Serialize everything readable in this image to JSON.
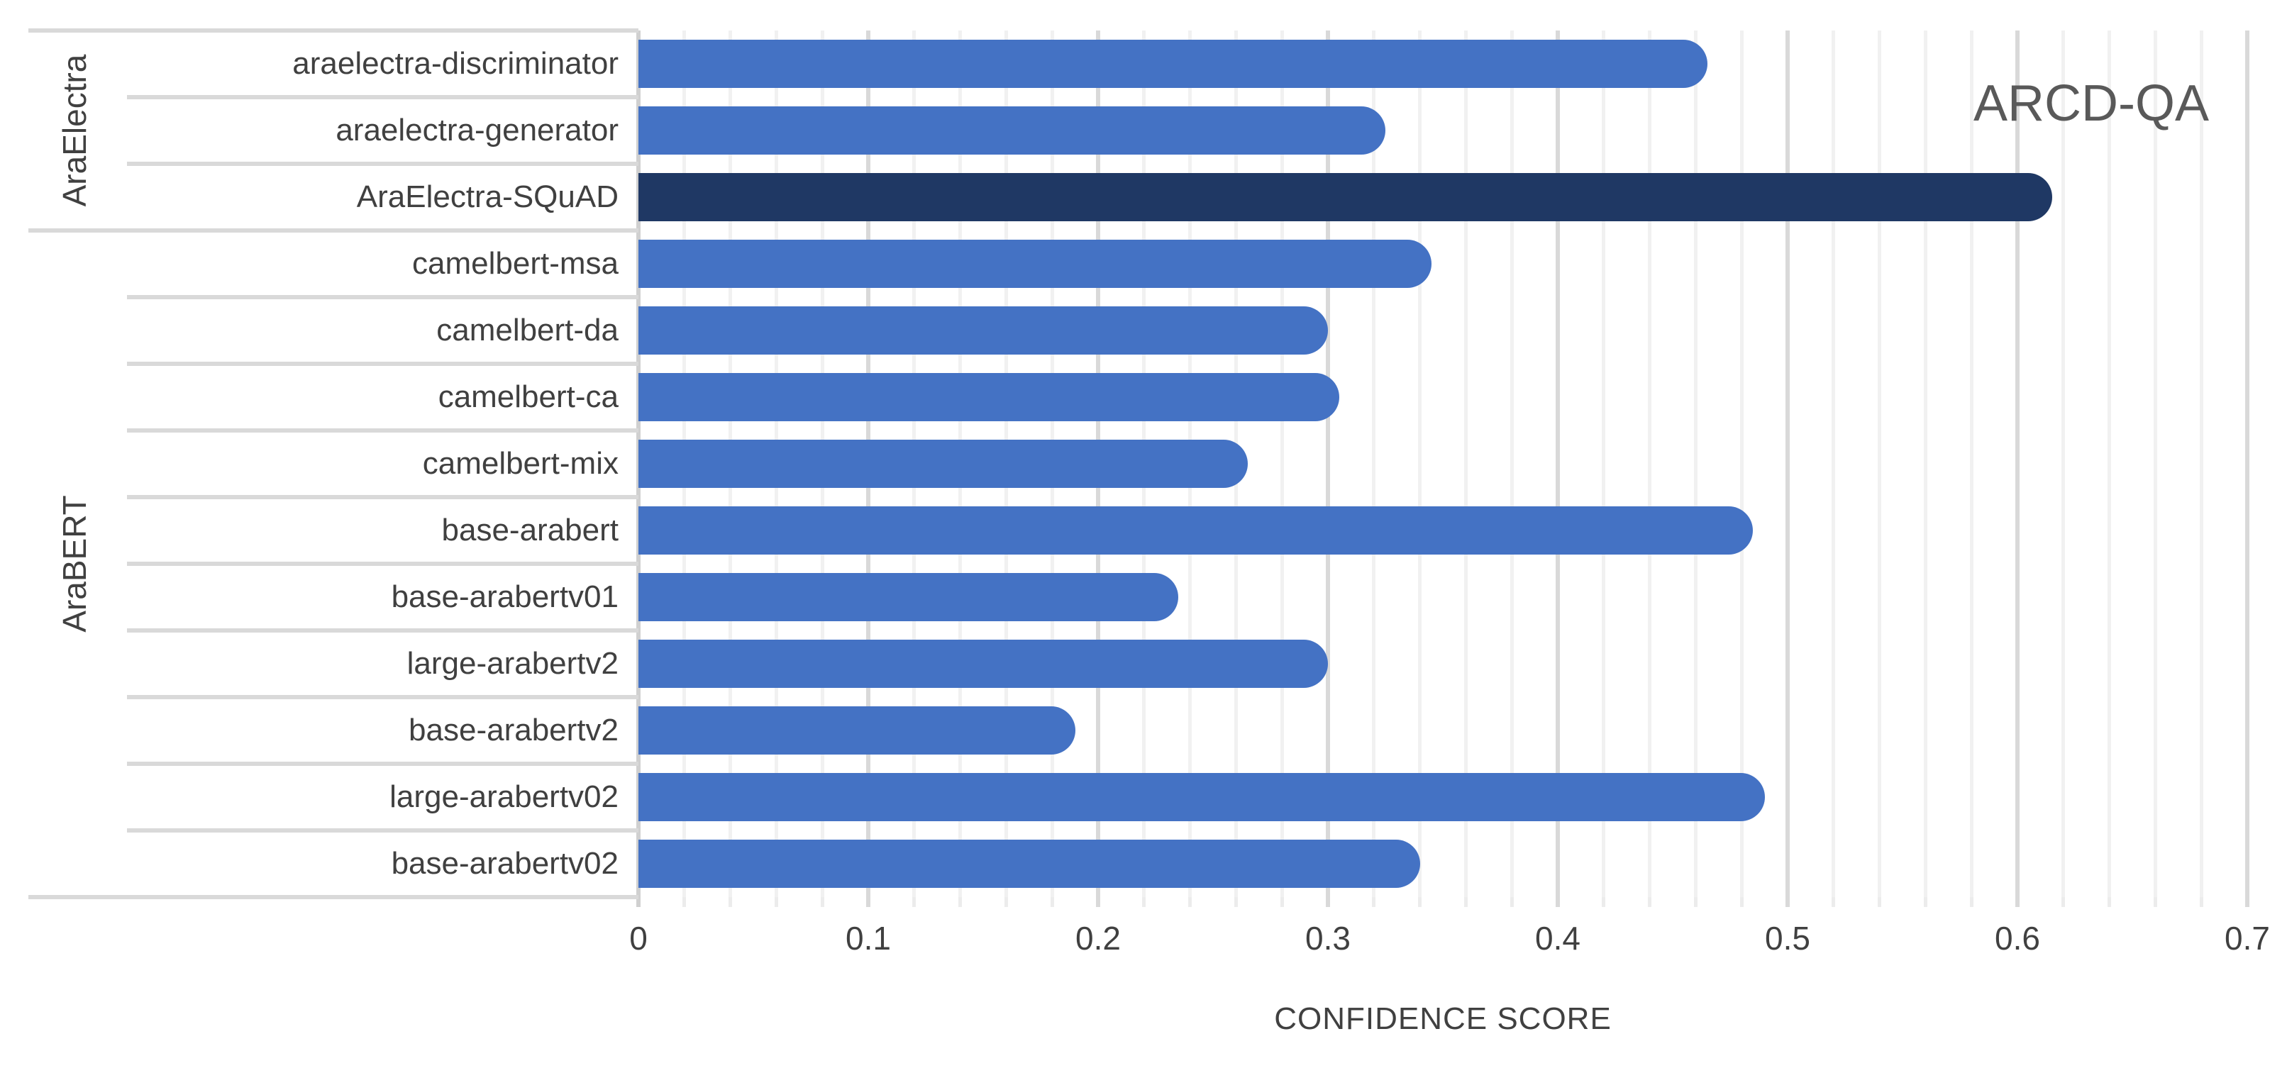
{
  "chart_data": {
    "type": "bar",
    "orientation": "horizontal",
    "title": "ARCD-QA",
    "xlabel": "CONFIDENCE SCORE",
    "xlim": [
      0,
      0.7
    ],
    "x_major_tick": 0.1,
    "x_minor_tick": 0.02,
    "grid": "vertical, minor and major gridlines",
    "legend_position": "none",
    "tick_labels": [
      "0",
      "0.1",
      "0.2",
      "0.3",
      "0.4",
      "0.5",
      "0.6",
      "0.7"
    ],
    "groups": [
      {
        "label": "AraElectra",
        "start_row": 0,
        "end_row": 3
      },
      {
        "label": "AraBERT",
        "start_row": 3,
        "end_row": 13
      }
    ],
    "bars": [
      {
        "group": "AraElectra",
        "label": "araelectra-discriminator",
        "value": 0.465,
        "highlight": false
      },
      {
        "group": "AraElectra",
        "label": "araelectra-generator",
        "value": 0.325,
        "highlight": false
      },
      {
        "group": "AraElectra",
        "label": "AraElectra-SQuAD",
        "value": 0.615,
        "highlight": true
      },
      {
        "group": "AraBERT",
        "label": "camelbert-msa",
        "value": 0.345,
        "highlight": false
      },
      {
        "group": "AraBERT",
        "label": "camelbert-da",
        "value": 0.3,
        "highlight": false
      },
      {
        "group": "AraBERT",
        "label": "camelbert-ca",
        "value": 0.305,
        "highlight": false
      },
      {
        "group": "AraBERT",
        "label": "camelbert-mix",
        "value": 0.265,
        "highlight": false
      },
      {
        "group": "AraBERT",
        "label": "base-arabert",
        "value": 0.485,
        "highlight": false
      },
      {
        "group": "AraBERT",
        "label": "base-arabertv01",
        "value": 0.235,
        "highlight": false
      },
      {
        "group": "AraBERT",
        "label": "large-arabertv2",
        "value": 0.3,
        "highlight": false
      },
      {
        "group": "AraBERT",
        "label": "base-arabertv2",
        "value": 0.19,
        "highlight": false
      },
      {
        "group": "AraBERT",
        "label": "large-arabertv02",
        "value": 0.49,
        "highlight": false
      },
      {
        "group": "AraBERT",
        "label": "base-arabertv02",
        "value": 0.34,
        "highlight": false
      }
    ],
    "colors": {
      "bar": "#4472c4",
      "bar_highlight": "#1f3864",
      "grid_major": "#d9d9d9",
      "grid_minor": "#f1f1f1",
      "axis_line": "#d0d0d0",
      "separator": "#d9d9d9",
      "label_text": "#404040",
      "title_text": "#595959"
    }
  }
}
